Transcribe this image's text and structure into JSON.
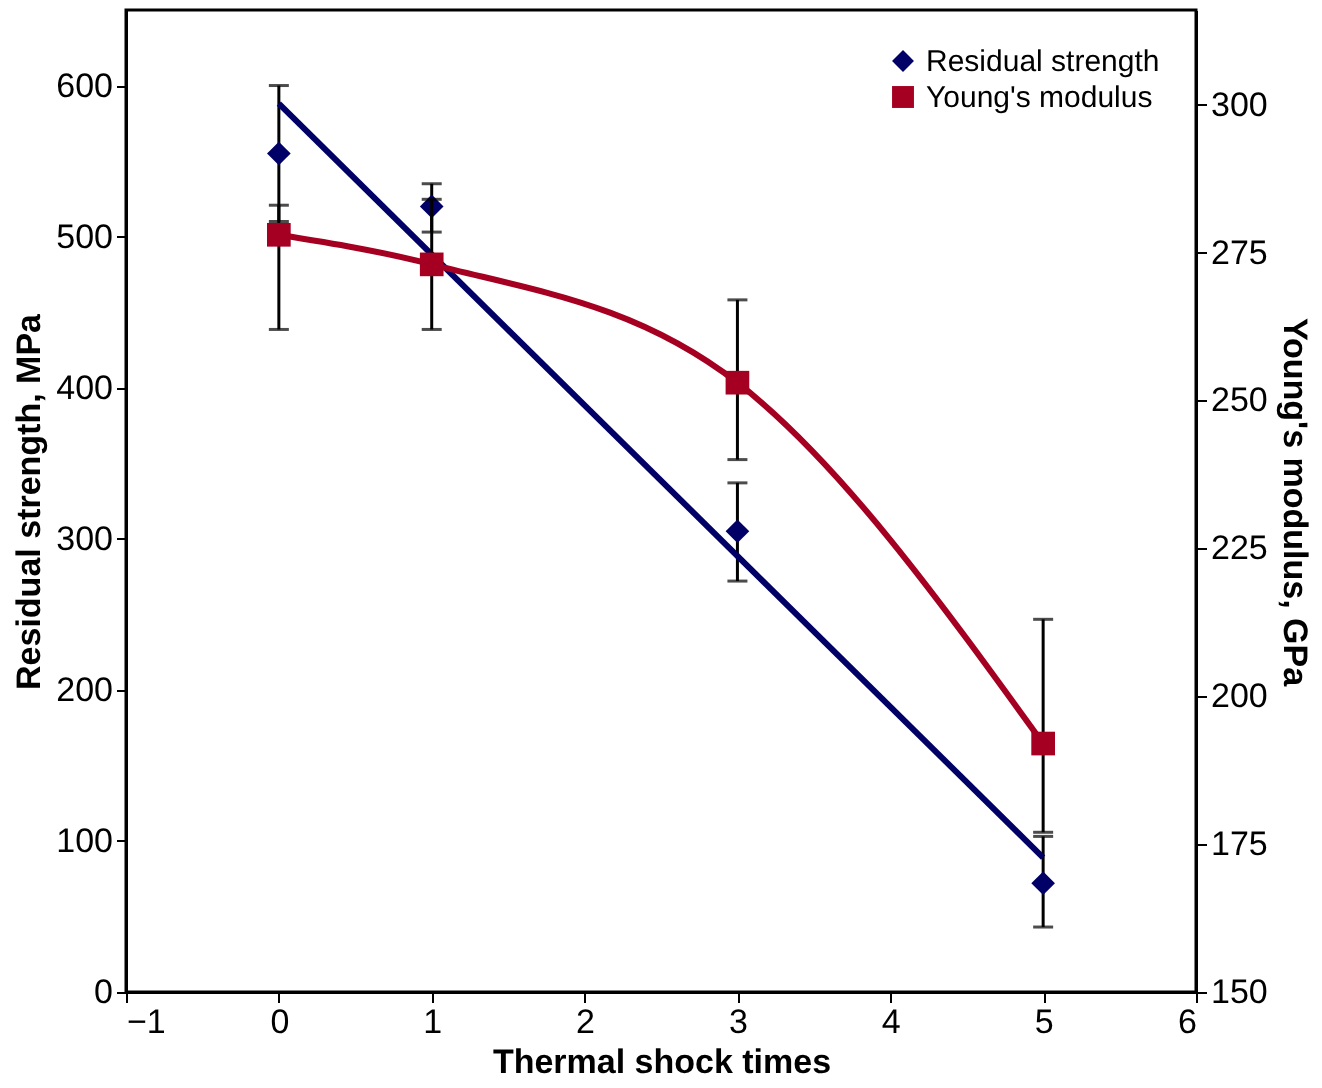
{
  "chart_data": {
    "type": "scatter",
    "xlabel": "Thermal shock times",
    "ylabel": "Residual strength, MPa",
    "y2label": "Young's modulus, GPa",
    "xlim": [
      -1,
      6
    ],
    "xticks": [
      -1,
      0,
      1,
      2,
      3,
      4,
      5,
      6
    ],
    "ylim": [
      0,
      650
    ],
    "yticks": [
      0,
      100,
      200,
      300,
      400,
      500,
      600
    ],
    "y2lim": [
      150,
      316
    ],
    "y2ticks": [
      150,
      175,
      200,
      225,
      250,
      275,
      300
    ],
    "grid": false,
    "legend": "top right",
    "series": [
      {
        "name": "Residual strength",
        "marker": "diamond",
        "color": "#000066",
        "x": [
          0,
          1,
          3,
          5
        ],
        "values": [
          555,
          520,
          305,
          72
        ],
        "errors": [
          [
            510,
            600
          ],
          [
            503,
            535
          ],
          [
            272,
            337
          ],
          [
            43,
            103
          ]
        ]
      },
      {
        "type": "line",
        "marker": "none",
        "color": "#000066",
        "x": [
          0,
          5
        ],
        "values": [
          588,
          89
        ]
      },
      {
        "name": "Young's modulus",
        "type": "line",
        "axis": "y2",
        "marker": "square",
        "color": "#a50021",
        "x": [
          0,
          1,
          3,
          5
        ],
        "values": [
          278,
          273,
          253,
          192
        ],
        "errors": [
          [
            262,
            283
          ],
          [
            262,
            284
          ],
          [
            240,
            267
          ],
          [
            177,
            213
          ]
        ]
      }
    ]
  }
}
